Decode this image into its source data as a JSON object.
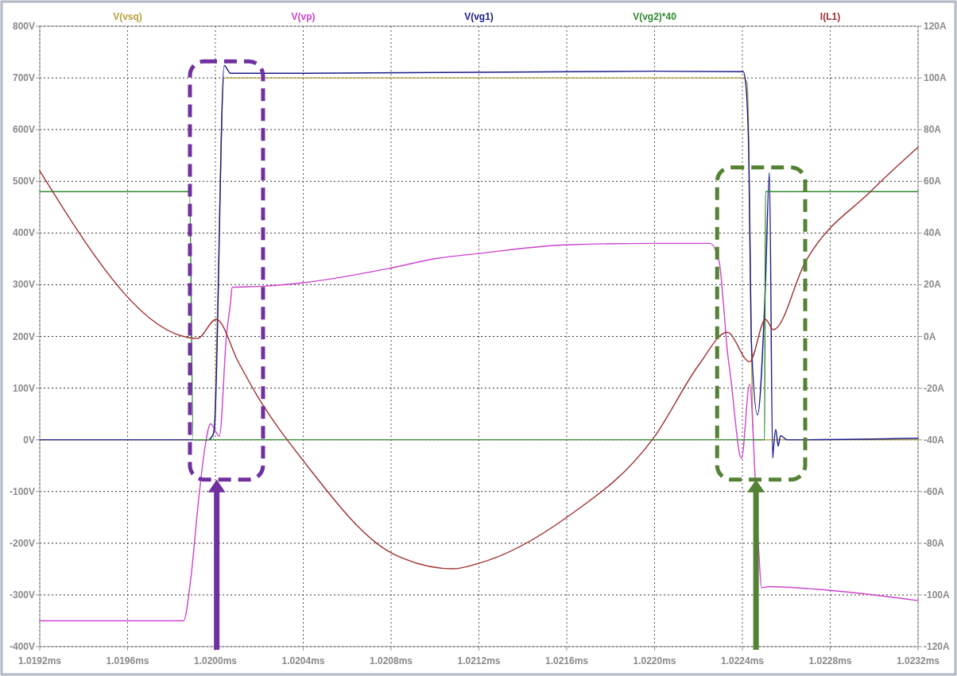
{
  "chart_data": {
    "type": "line",
    "legend": "top",
    "grid": true,
    "line_style": "solid",
    "marker": "none",
    "xlim": [
      1.0192,
      1.0232
    ],
    "xticks": [
      {
        "value": 1.0192,
        "label": "1.0192ms"
      },
      {
        "value": 1.0196,
        "label": "1.0196ms"
      },
      {
        "value": 1.02,
        "label": "1.0200ms"
      },
      {
        "value": 1.0204,
        "label": "1.0204ms"
      },
      {
        "value": 1.0208,
        "label": "1.0208ms"
      },
      {
        "value": 1.0212,
        "label": "1.0212ms"
      },
      {
        "value": 1.0216,
        "label": "1.0216ms"
      },
      {
        "value": 1.022,
        "label": "1.0220ms"
      },
      {
        "value": 1.0224,
        "label": "1.0224ms"
      },
      {
        "value": 1.0228,
        "label": "1.0228ms"
      },
      {
        "value": 1.0232,
        "label": "1.0232ms"
      }
    ],
    "ylim": [
      -400,
      800
    ],
    "yticks": [
      {
        "value": -400,
        "label": "-400V"
      },
      {
        "value": -300,
        "label": "-300V"
      },
      {
        "value": -200,
        "label": "-200V"
      },
      {
        "value": -100,
        "label": "-100V"
      },
      {
        "value": 0,
        "label": "0V"
      },
      {
        "value": 100,
        "label": "100V"
      },
      {
        "value": 200,
        "label": "200V"
      },
      {
        "value": 300,
        "label": "300V"
      },
      {
        "value": 400,
        "label": "400V"
      },
      {
        "value": 500,
        "label": "500V"
      },
      {
        "value": 600,
        "label": "600V"
      },
      {
        "value": 700,
        "label": "700V"
      },
      {
        "value": 800,
        "label": "800V"
      }
    ],
    "y2lim": [
      -120,
      120
    ],
    "y2ticks": [
      {
        "value": -120,
        "label": "-120A"
      },
      {
        "value": -100,
        "label": "-100A"
      },
      {
        "value": -80,
        "label": "-80A"
      },
      {
        "value": -60,
        "label": "-60A"
      },
      {
        "value": -40,
        "label": "-40A"
      },
      {
        "value": -20,
        "label": "-20A"
      },
      {
        "value": 0,
        "label": "0A"
      },
      {
        "value": 20,
        "label": "20A"
      },
      {
        "value": 40,
        "label": "40A"
      },
      {
        "value": 60,
        "label": "60A"
      },
      {
        "value": 80,
        "label": "80A"
      },
      {
        "value": 100,
        "label": "100A"
      },
      {
        "value": 120,
        "label": "120A"
      }
    ],
    "series": [
      {
        "name": "V(vsq)",
        "color": "#b8a040",
        "x": [
          1.0192,
          1.019989,
          1.02004,
          1.022404,
          1.022422,
          1.022451,
          1.0232
        ],
        "values": [
          0,
          0,
          700,
          700,
          690,
          0,
          0
        ]
      },
      {
        "name": "V(vp)",
        "color": "#cc44cc",
        "x": [
          1.0192,
          1.019855,
          1.019888,
          1.019924,
          1.019953,
          1.019978,
          1.020018,
          1.020051,
          1.020069,
          1.020076,
          1.020214,
          1.020405,
          1.020807,
          1.02101,
          1.021191,
          1.0216,
          1.021998,
          1.022252,
          1.022295,
          1.022313,
          1.022331,
          1.022349,
          1.022368,
          1.022386,
          1.022396,
          1.022433,
          1.022458,
          1.022476,
          1.022487,
          1.022523,
          1.022791,
          1.0232
        ],
        "values": [
          -350,
          -350,
          -268,
          -114,
          -13,
          31,
          7,
          205,
          266,
          295,
          297,
          304,
          333,
          351,
          360,
          377,
          380,
          380,
          343,
          266,
          174,
          113,
          36,
          -25,
          -36,
          108,
          -71,
          -225,
          -286,
          -284,
          -291,
          -311
        ]
      },
      {
        "name": "V(vg1)",
        "color": "#1a1a8c",
        "x": [
          1.0192,
          1.019967,
          1.019989,
          1.019996,
          1.02004,
          1.020069,
          1.020405,
          1.021998,
          1.022404,
          1.022415,
          1.022429,
          1.02244,
          1.022469,
          1.022505,
          1.022523,
          1.022538,
          1.022541,
          1.022552,
          1.022563,
          1.022574,
          1.022603,
          1.0232
        ],
        "values": [
          0,
          0,
          10,
          25,
          724,
          709,
          709,
          713,
          712,
          690,
          555,
          200,
          48,
          300,
          517,
          -35,
          -20,
          20,
          -12,
          8,
          0,
          3
        ]
      },
      {
        "name": "V(vg2)*40",
        "color": "#2e8b2e",
        "x": [
          1.0192,
          1.019882,
          1.019899,
          1.022501,
          1.022505,
          1.0232
        ],
        "values": [
          480,
          480,
          0,
          0,
          480,
          480
        ]
      },
      {
        "name": "I(L1)",
        "color": "#a03030",
        "axis": "y2",
        "x": [
          1.0192,
          1.019855,
          1.019917,
          1.020004,
          1.020105,
          1.020188,
          1.020405,
          1.020807,
          1.021082,
          1.021191,
          1.0216,
          1.021998,
          1.022205,
          1.022331,
          1.022433,
          1.022505,
          1.022541,
          1.022686,
          1.022987,
          1.0232
        ],
        "values": [
          64,
          0,
          -0.8,
          6.6,
          -10,
          -22.6,
          -48.6,
          -84,
          -89.9,
          -88,
          -70,
          -39,
          -10.6,
          1.6,
          -9.8,
          6.6,
          2.6,
          28.7,
          56.3,
          73.2
        ]
      }
    ]
  }
}
